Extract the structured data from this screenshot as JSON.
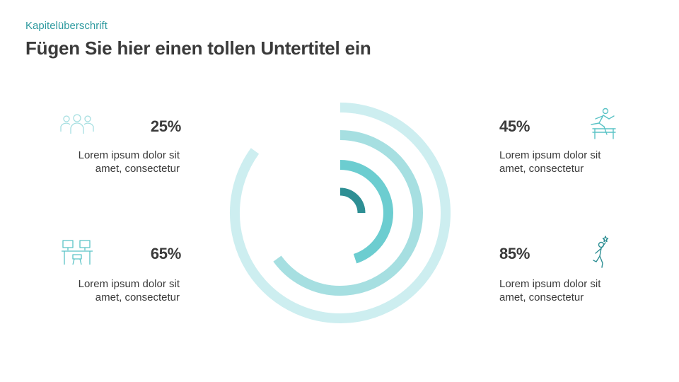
{
  "header": {
    "chapter_title": "Kapitelüberschrift",
    "subtitle": "Fügen Sie hier einen tollen Untertitel ein"
  },
  "items": [
    {
      "percent_label": "25%",
      "line1": "Lorem ipsum dolor sit",
      "line2": "amet, consectetur",
      "icon": "people-group-icon"
    },
    {
      "percent_label": "45%",
      "line1": "Lorem ipsum dolor sit",
      "line2": "amet, consectetur",
      "icon": "hurdle-runner-icon"
    },
    {
      "percent_label": "65%",
      "line1": "Lorem ipsum dolor sit",
      "line2": "amet, consectetur",
      "icon": "desk-workplace-icon"
    },
    {
      "percent_label": "85%",
      "line1": "Lorem ipsum dolor sit",
      "line2": "amet, consectetur",
      "icon": "jumping-person-star-icon"
    }
  ],
  "chart_data": {
    "type": "radial-bar",
    "title": "",
    "max": 100,
    "series": [
      {
        "name": "25%",
        "value": 25,
        "color": "#2e8f94"
      },
      {
        "name": "45%",
        "value": 45,
        "color": "#6ccdd0"
      },
      {
        "name": "65%",
        "value": 65,
        "color": "#a6dfe1"
      },
      {
        "name": "85%",
        "value": 85,
        "color": "#cdeef0"
      }
    ]
  },
  "colors": {
    "accent": "#2e9a9f",
    "text": "#3a3a3a",
    "icon": "#5bc3c6"
  }
}
